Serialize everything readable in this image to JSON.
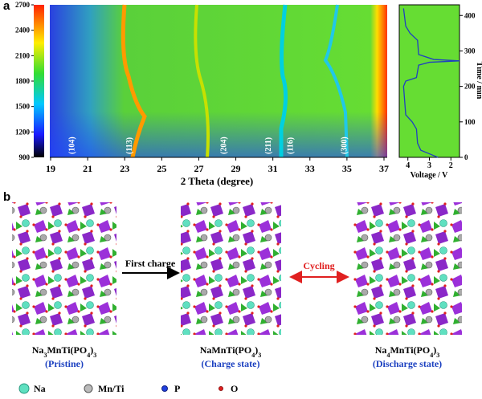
{
  "panel_a": {
    "label": "a",
    "colorbar": {
      "lim": [
        900,
        2700
      ],
      "ticks": [
        900,
        1200,
        1500,
        1800,
        2100,
        2400,
        2700
      ]
    },
    "heatmap": {
      "xlabel": "2 Theta (degree)",
      "xlim": [
        19,
        37
      ],
      "xticks": [
        19,
        21,
        23,
        25,
        27,
        29,
        31,
        33,
        35,
        37
      ],
      "peaks": [
        {
          "label": "(104)",
          "x": 20.1
        },
        {
          "label": "(113)",
          "x": 23.2
        },
        {
          "label": "(204)",
          "x": 28.3
        },
        {
          "label": "(211)",
          "x": 30.7
        },
        {
          "label": "(116)",
          "x": 31.9
        },
        {
          "label": "(300)",
          "x": 34.8
        }
      ]
    },
    "voltage_plot": {
      "xlabel": "Voltage / V",
      "ylabel": "Time / min",
      "xlim": [
        4.4,
        1.6
      ],
      "ylim": [
        0,
        430
      ],
      "xticks": [
        4,
        3,
        2
      ],
      "yticks": [
        0,
        100,
        200,
        300,
        400
      ],
      "time": [
        0,
        10,
        20,
        40,
        80,
        100,
        120,
        160,
        200,
        215,
        225,
        260,
        268,
        272,
        276,
        290,
        330,
        350,
        370,
        420
      ],
      "voltage": [
        2.6,
        3.0,
        3.4,
        3.55,
        3.6,
        3.8,
        4.1,
        4.15,
        4.2,
        4.1,
        3.6,
        3.5,
        3.0,
        1.6,
        2.8,
        3.5,
        3.55,
        3.9,
        4.1,
        4.2
      ]
    }
  },
  "panel_b": {
    "label": "b",
    "arrows": [
      "First charge",
      "Cycling"
    ],
    "structures": [
      {
        "formula": [
          "Na",
          "3",
          "MnTi(PO",
          "4",
          ")",
          "3"
        ],
        "state": "(Pristine)"
      },
      {
        "formula": [
          "NaMnTi(PO",
          "4",
          ")",
          "3"
        ],
        "state": "(Charge state)"
      },
      {
        "formula": [
          "Na",
          "4",
          "MnTi(PO",
          "4",
          ")",
          "3"
        ],
        "state": "(Discharge state)"
      }
    ],
    "legend": [
      "Na",
      "Mn/Ti",
      "P",
      "O"
    ]
  }
}
